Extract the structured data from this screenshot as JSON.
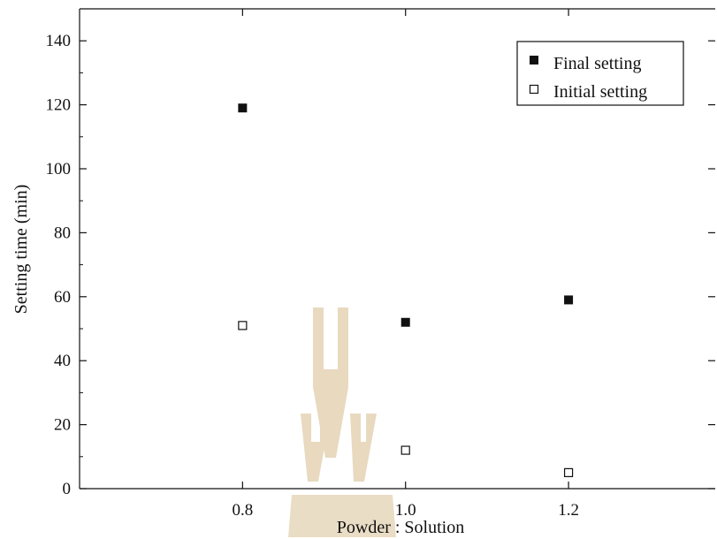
{
  "chart_data": {
    "type": "scatter",
    "title": "",
    "xlabel": "Powder : Solution",
    "ylabel": "Setting time (min)",
    "xlim": [
      0.6,
      1.38
    ],
    "ylim": [
      0,
      150
    ],
    "xticks": [
      0.8,
      1.0,
      1.2
    ],
    "xtick_labels": [
      "0.8",
      "1.0",
      "1.2"
    ],
    "yticks": [
      0,
      20,
      40,
      60,
      80,
      100,
      120,
      140
    ],
    "ytick_labels": [
      "0",
      "20",
      "40",
      "60",
      "80",
      "100",
      "120",
      "140"
    ],
    "grid": false,
    "legend_position": "top-right",
    "series": [
      {
        "name": "Final setting",
        "marker": "filled-square",
        "color": "#111111",
        "x": [
          0.8,
          1.0,
          1.2
        ],
        "y": [
          119,
          52,
          59
        ]
      },
      {
        "name": "Initial setting",
        "marker": "open-square",
        "color": "#111111",
        "x": [
          0.8,
          1.0,
          1.2
        ],
        "y": [
          51,
          12,
          5
        ]
      }
    ],
    "watermark": {
      "icon": "university-seal-watermark",
      "color": "#e8d9bf"
    }
  }
}
